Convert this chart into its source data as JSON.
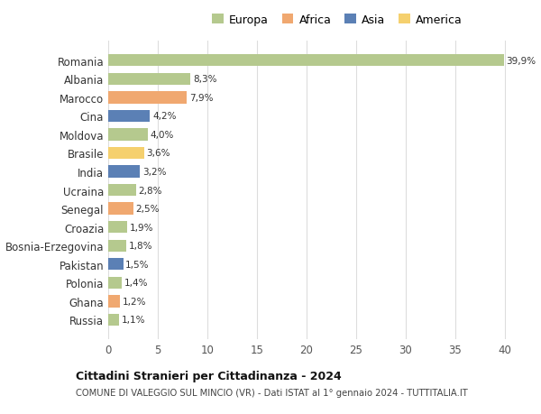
{
  "countries": [
    "Romania",
    "Albania",
    "Marocco",
    "Cina",
    "Moldova",
    "Brasile",
    "India",
    "Ucraina",
    "Senegal",
    "Croazia",
    "Bosnia-Erzegovina",
    "Pakistan",
    "Polonia",
    "Ghana",
    "Russia"
  ],
  "values": [
    39.9,
    8.3,
    7.9,
    4.2,
    4.0,
    3.6,
    3.2,
    2.8,
    2.5,
    1.9,
    1.8,
    1.5,
    1.4,
    1.2,
    1.1
  ],
  "labels": [
    "39,9%",
    "8,3%",
    "7,9%",
    "4,2%",
    "4,0%",
    "3,6%",
    "3,2%",
    "2,8%",
    "2,5%",
    "1,9%",
    "1,8%",
    "1,5%",
    "1,4%",
    "1,2%",
    "1,1%"
  ],
  "continents": [
    "Europa",
    "Europa",
    "Africa",
    "Asia",
    "Europa",
    "America",
    "Asia",
    "Europa",
    "Africa",
    "Europa",
    "Europa",
    "Asia",
    "Europa",
    "Africa",
    "Europa"
  ],
  "colors": {
    "Europa": "#b5c98e",
    "Africa": "#f0a870",
    "Asia": "#5b80b5",
    "America": "#f5d06e"
  },
  "xlim": [
    0,
    42
  ],
  "xticks": [
    0,
    5,
    10,
    15,
    20,
    25,
    30,
    35,
    40
  ],
  "title_bold": "Cittadini Stranieri per Cittadinanza - 2024",
  "subtitle": "COMUNE DI VALEGGIO SUL MINCIO (VR) - Dati ISTAT al 1° gennaio 2024 - TUTTITALIA.IT",
  "background_color": "#ffffff",
  "grid_color": "#dddddd",
  "bar_height": 0.65,
  "legend_order": [
    "Europa",
    "Africa",
    "Asia",
    "America"
  ]
}
